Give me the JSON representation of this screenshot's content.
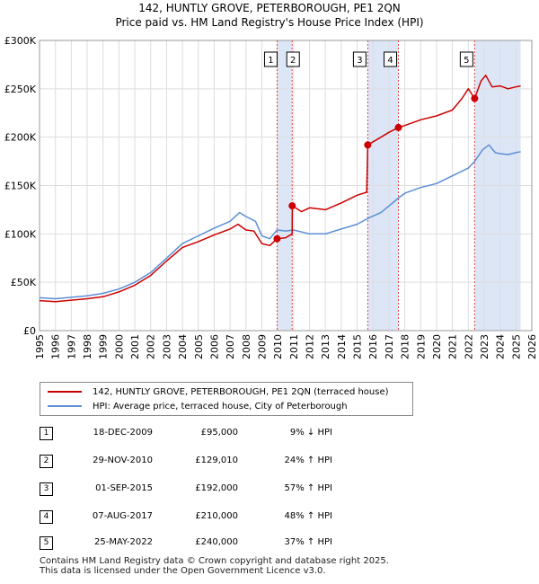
{
  "header": {
    "title_line1": "142, HUNTLY GROVE, PETERBOROUGH, PE1 2QN",
    "title_line2": "Price paid vs. HM Land Registry's House Price Index (HPI)"
  },
  "colors": {
    "price": "#cc0000",
    "hpi": "#5b8ed6",
    "shade": "#dde6f7",
    "marker_line": "#dd4444",
    "grid": "#dddddd"
  },
  "chart_data": {
    "type": "line",
    "title": "142, HUNTLY GROVE, PETERBOROUGH, PE1 2QN",
    "subtitle": "Price paid vs. HM Land Registry's House Price Index (HPI)",
    "xlabel": "",
    "ylabel": "",
    "xlim": [
      1995,
      2026
    ],
    "ylim": [
      0,
      300000
    ],
    "x_ticks": [
      1995,
      1996,
      1997,
      1998,
      1999,
      2000,
      2001,
      2002,
      2003,
      2004,
      2005,
      2006,
      2007,
      2008,
      2009,
      2010,
      2011,
      2012,
      2013,
      2014,
      2015,
      2016,
      2017,
      2018,
      2019,
      2020,
      2021,
      2022,
      2023,
      2024,
      2025,
      2026
    ],
    "y_ticks": [
      0,
      50000,
      100000,
      150000,
      200000,
      250000,
      300000
    ],
    "y_tick_labels": [
      "£0",
      "£50K",
      "£100K",
      "£150K",
      "£200K",
      "£250K",
      "£300K"
    ],
    "grid": true,
    "shaded_ranges": [
      [
        2009.96,
        2010.91
      ],
      [
        2015.67,
        2017.6
      ],
      [
        2022.4,
        2025.3
      ]
    ],
    "series": [
      {
        "name": "142, HUNTLY GROVE, PETERBOROUGH, PE1 2QN (terraced house)",
        "points": [
          [
            1995,
            31000
          ],
          [
            1996,
            30000
          ],
          [
            1997,
            31500
          ],
          [
            1998,
            33000
          ],
          [
            1999,
            35000
          ],
          [
            2000,
            40000
          ],
          [
            2001,
            47000
          ],
          [
            2002,
            57000
          ],
          [
            2003,
            72000
          ],
          [
            2004,
            86000
          ],
          [
            2005,
            92000
          ],
          [
            2006,
            99000
          ],
          [
            2007,
            105000
          ],
          [
            2007.5,
            110000
          ],
          [
            2008,
            104000
          ],
          [
            2008.5,
            103000
          ],
          [
            2009,
            90000
          ],
          [
            2009.5,
            88000
          ],
          [
            2009.96,
            95000
          ],
          [
            2010.5,
            96000
          ],
          [
            2010.91,
            100000
          ],
          [
            2010.92,
            129010
          ],
          [
            2011.2,
            126000
          ],
          [
            2011.5,
            123000
          ],
          [
            2012,
            127000
          ],
          [
            2013,
            125000
          ],
          [
            2014,
            132000
          ],
          [
            2015,
            140000
          ],
          [
            2015.6,
            143000
          ],
          [
            2015.67,
            192000
          ],
          [
            2016.5,
            200000
          ],
          [
            2017,
            205000
          ],
          [
            2017.6,
            210000
          ],
          [
            2018,
            212000
          ],
          [
            2019,
            218000
          ],
          [
            2020,
            222000
          ],
          [
            2021,
            228000
          ],
          [
            2021.6,
            240000
          ],
          [
            2022,
            250000
          ],
          [
            2022.4,
            240000
          ],
          [
            2022.8,
            258000
          ],
          [
            2023.1,
            264000
          ],
          [
            2023.5,
            252000
          ],
          [
            2024,
            253000
          ],
          [
            2024.5,
            250000
          ],
          [
            2025,
            252000
          ],
          [
            2025.3,
            253000
          ]
        ]
      },
      {
        "name": "HPI: Average price, terraced house, City of Peterborough",
        "points": [
          [
            1995,
            34000
          ],
          [
            1996,
            33000
          ],
          [
            1997,
            34500
          ],
          [
            1998,
            36000
          ],
          [
            1999,
            38500
          ],
          [
            2000,
            43000
          ],
          [
            2001,
            50000
          ],
          [
            2002,
            60000
          ],
          [
            2003,
            75000
          ],
          [
            2004,
            90000
          ],
          [
            2005,
            98000
          ],
          [
            2006,
            106000
          ],
          [
            2007,
            113000
          ],
          [
            2007.6,
            122000
          ],
          [
            2008,
            118000
          ],
          [
            2008.6,
            113000
          ],
          [
            2009,
            98000
          ],
          [
            2009.5,
            95000
          ],
          [
            2009.96,
            104000
          ],
          [
            2010.5,
            103000
          ],
          [
            2011,
            104000
          ],
          [
            2012,
            100000
          ],
          [
            2013,
            100000
          ],
          [
            2014,
            105000
          ],
          [
            2015,
            110000
          ],
          [
            2015.67,
            116000
          ],
          [
            2016.5,
            122000
          ],
          [
            2017.6,
            137000
          ],
          [
            2018,
            142000
          ],
          [
            2019,
            148000
          ],
          [
            2020,
            152000
          ],
          [
            2021,
            160000
          ],
          [
            2022,
            168000
          ],
          [
            2022.4,
            175000
          ],
          [
            2022.9,
            187000
          ],
          [
            2023.3,
            192000
          ],
          [
            2023.7,
            184000
          ],
          [
            2024,
            183000
          ],
          [
            2024.5,
            182000
          ],
          [
            2025,
            184000
          ],
          [
            2025.3,
            185000
          ]
        ]
      }
    ],
    "transactions": [
      {
        "num": "1",
        "x": 2009.96,
        "price": 95000
      },
      {
        "num": "2",
        "x": 2010.91,
        "price": 129010
      },
      {
        "num": "3",
        "x": 2015.67,
        "price": 192000
      },
      {
        "num": "4",
        "x": 2017.6,
        "price": 210000
      },
      {
        "num": "5",
        "x": 2022.4,
        "price": 240000
      }
    ]
  },
  "legend": {
    "series1": "142, HUNTLY GROVE, PETERBOROUGH, PE1 2QN (terraced house)",
    "series2": "HPI: Average price, terraced house, City of Peterborough"
  },
  "table": [
    {
      "num": "1",
      "date": "18-DEC-2009",
      "price": "£95,000",
      "hpi": "9% ↓ HPI"
    },
    {
      "num": "2",
      "date": "29-NOV-2010",
      "price": "£129,010",
      "hpi": "24% ↑ HPI"
    },
    {
      "num": "3",
      "date": "01-SEP-2015",
      "price": "£192,000",
      "hpi": "57% ↑ HPI"
    },
    {
      "num": "4",
      "date": "07-AUG-2017",
      "price": "£210,000",
      "hpi": "48% ↑ HPI"
    },
    {
      "num": "5",
      "date": "25-MAY-2022",
      "price": "£240,000",
      "hpi": "37% ↑ HPI"
    }
  ],
  "footer": {
    "line1": "Contains HM Land Registry data © Crown copyright and database right 2025.",
    "line2": "This data is licensed under the Open Government Licence v3.0."
  }
}
